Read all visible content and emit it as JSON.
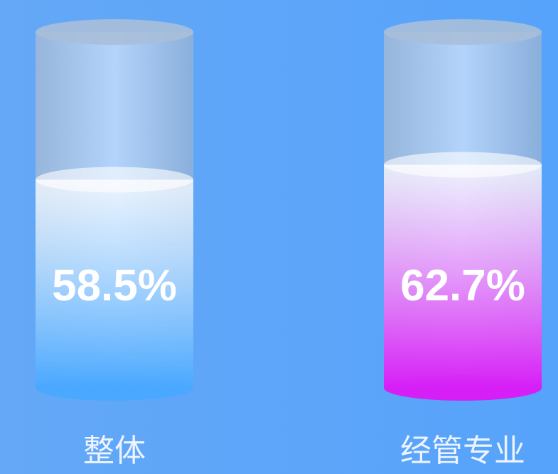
{
  "chart_data": {
    "type": "cylinder",
    "categories": [
      "整体",
      "经管专业"
    ],
    "values": [
      58.5,
      62.7
    ],
    "value_labels": [
      "58.5%",
      "62.7%"
    ],
    "colors": [
      "#4aa8ff",
      "#d61ff6"
    ],
    "ylim": [
      0,
      100
    ]
  }
}
